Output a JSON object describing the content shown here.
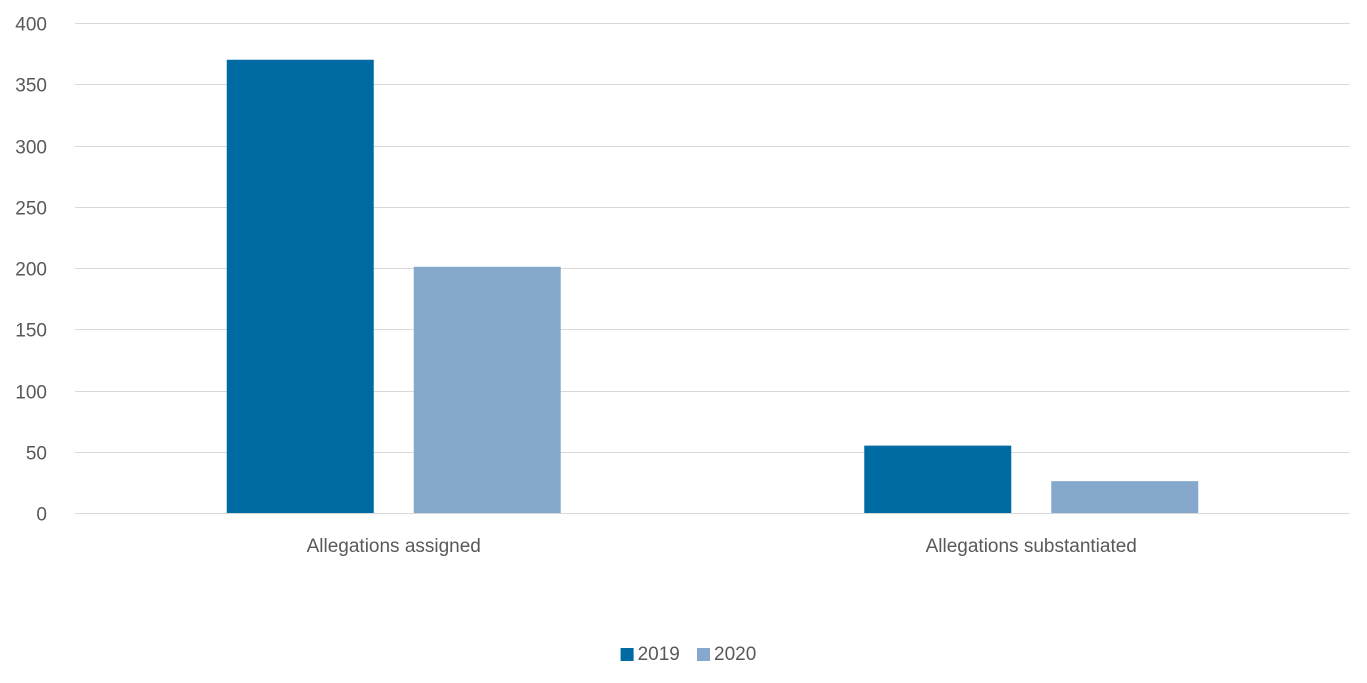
{
  "chart_data": {
    "type": "bar",
    "categories": [
      "Allegations assigned",
      "Allegations substantiated"
    ],
    "series": [
      {
        "name": "2019",
        "values": [
          370,
          55
        ],
        "color": "#006ba3"
      },
      {
        "name": "2020",
        "values": [
          201,
          26
        ],
        "color": "#85a8cc"
      }
    ],
    "title": "",
    "xlabel": "",
    "ylabel": "",
    "ylim": [
      0,
      400
    ],
    "yticks": [
      0,
      50,
      100,
      150,
      200,
      250,
      300,
      350,
      400
    ],
    "grid": true,
    "legend_position": "bottom"
  }
}
